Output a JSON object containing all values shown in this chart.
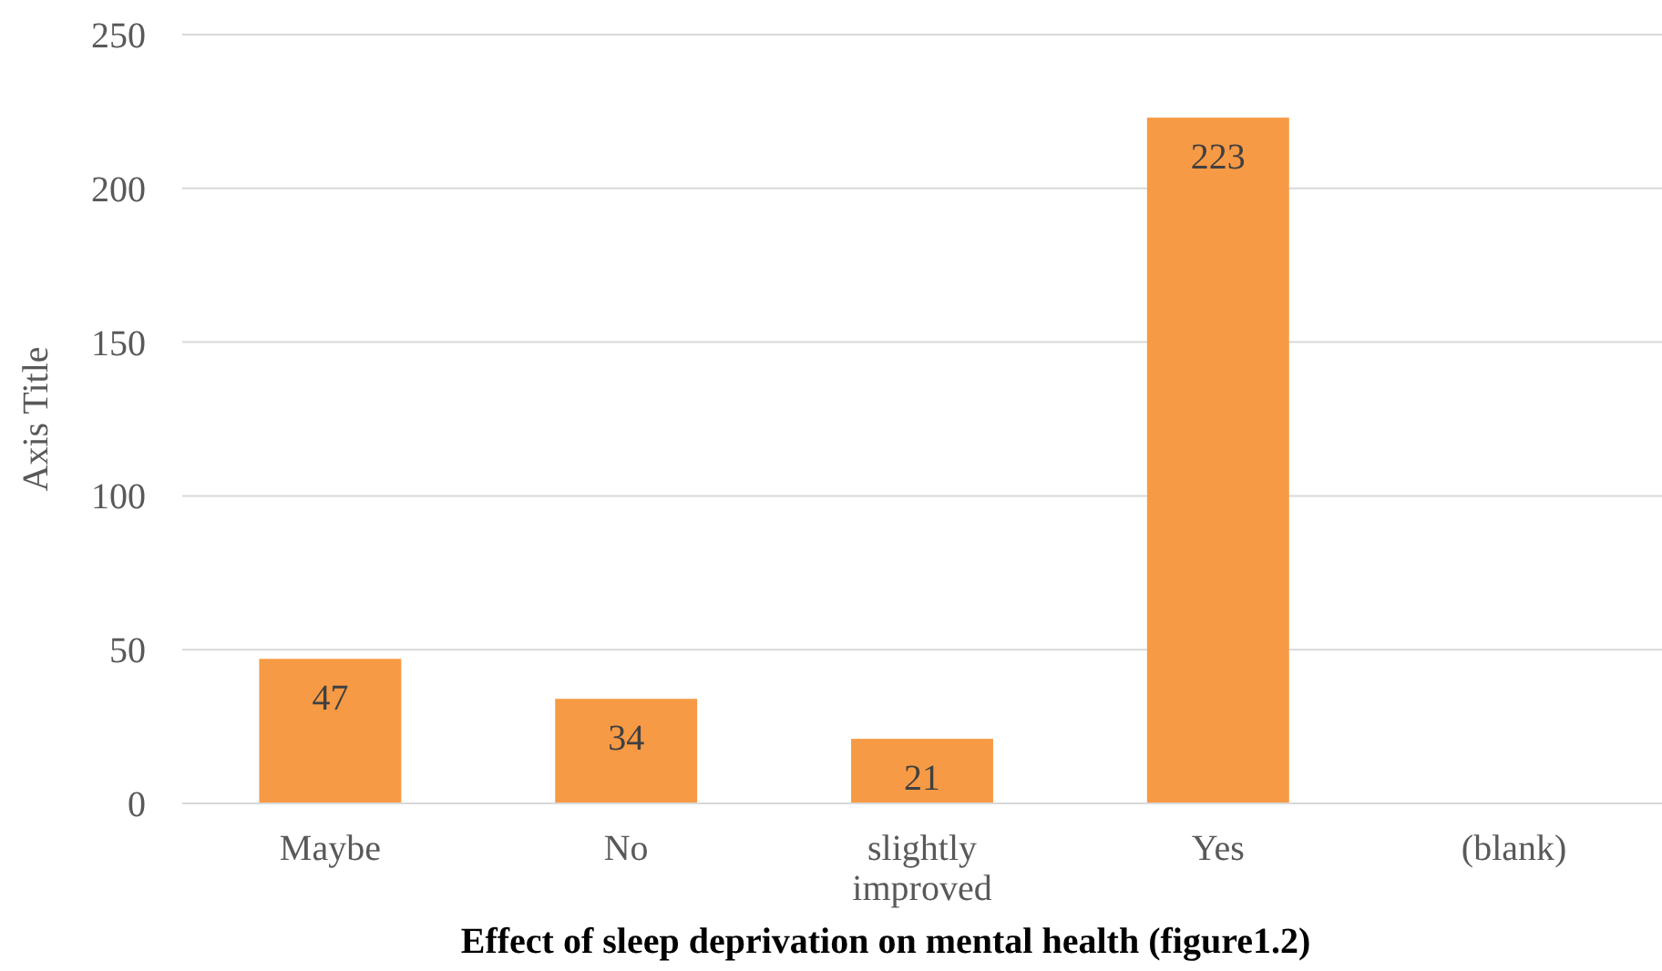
{
  "chart_data": {
    "type": "bar",
    "title": "Effect of sleep deprivation on mental health (figure1.2)",
    "ylabel": "Axis Title",
    "categories": [
      "Maybe",
      "No",
      "slightly improved",
      "Yes",
      "(blank)"
    ],
    "values": [
      47,
      34,
      21,
      223,
      null
    ],
    "color": "#f79a45",
    "ylim": [
      0,
      250
    ],
    "yticks": [
      0,
      50,
      100,
      150,
      200,
      250
    ],
    "grid": "y",
    "data_labels": true
  }
}
